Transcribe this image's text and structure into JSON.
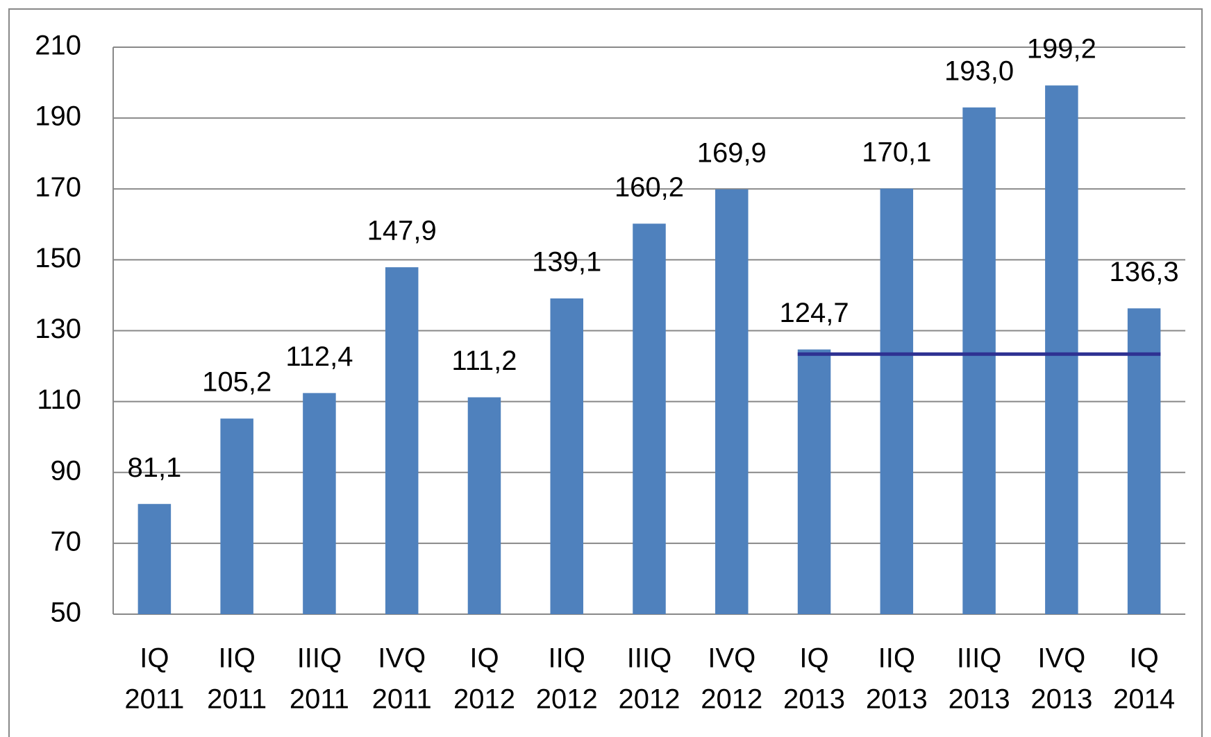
{
  "chart_data": {
    "type": "bar",
    "categories": [
      [
        "IQ",
        "2011"
      ],
      [
        "IIQ",
        "2011"
      ],
      [
        "IIIQ",
        "2011"
      ],
      [
        "IVQ",
        "2011"
      ],
      [
        "IQ",
        "2012"
      ],
      [
        "IIQ",
        "2012"
      ],
      [
        "IIIQ",
        "2012"
      ],
      [
        "IVQ",
        "2012"
      ],
      [
        "IQ",
        "2013"
      ],
      [
        "IIQ",
        "2013"
      ],
      [
        "IIIQ",
        "2013"
      ],
      [
        "IVQ",
        "2013"
      ],
      [
        "IQ",
        "2014"
      ]
    ],
    "values": [
      81.1,
      105.2,
      112.4,
      147.9,
      111.2,
      139.1,
      160.2,
      169.9,
      124.7,
      170.1,
      193.0,
      199.2,
      136.3
    ],
    "value_labels": [
      "81,1",
      "105,2",
      "112,4",
      "147,9",
      "111,2",
      "139,1",
      "160,2",
      "169,9",
      "124,7",
      "170,1",
      "193,0",
      "199,2",
      "136,3"
    ],
    "color": "#4f81bd",
    "ylim": [
      50,
      210
    ],
    "yticks": [
      50,
      70,
      90,
      110,
      130,
      150,
      170,
      190,
      210
    ],
    "grid": true,
    "reference_line": {
      "value": 123.4,
      "color": "#2e3192",
      "span": [
        8,
        12
      ]
    }
  }
}
